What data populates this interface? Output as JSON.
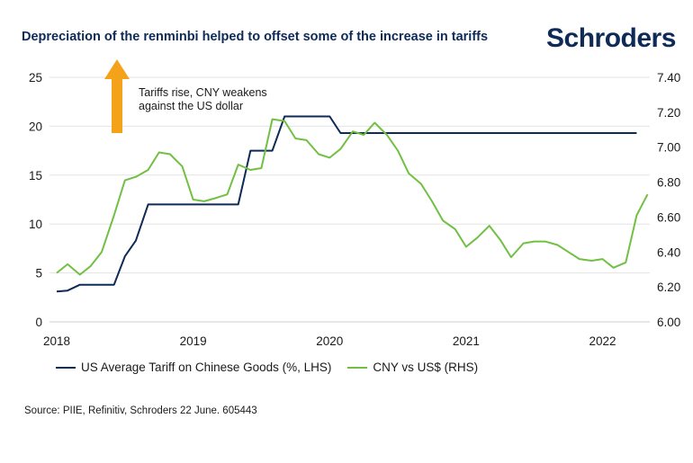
{
  "header": {
    "title": "Depreciation of the renminbi helped to offset some of the increase in tariffs",
    "brand": "Schroders"
  },
  "chart_data": {
    "type": "line",
    "annotation": "Tariffs rise, CNY weakens\nagainst the US dollar",
    "annotation_icon": "up-arrow-icon",
    "x_ticks": [
      "2018",
      "2019",
      "2020",
      "2021",
      "2022"
    ],
    "x_tick_years": [
      2018,
      2019,
      2020,
      2021,
      2022
    ],
    "xlim": [
      2018.0,
      2022.3
    ],
    "y_left": {
      "ticks": [
        "0",
        "5",
        "10",
        "15",
        "20",
        "25"
      ],
      "lim": [
        0,
        25
      ]
    },
    "y_right": {
      "ticks": [
        "6.00",
        "6.20",
        "6.40",
        "6.60",
        "6.80",
        "7.00",
        "7.20",
        "7.40"
      ],
      "lim": [
        6.0,
        7.4
      ]
    },
    "grid": "horizontal",
    "series": [
      {
        "name": "US Average Tariff on Chinese Goods (%, LHS)",
        "axis": "left",
        "color": "#0e2a57",
        "points": [
          [
            2018.0,
            3.1
          ],
          [
            2018.08,
            3.2
          ],
          [
            2018.17,
            3.8
          ],
          [
            2018.25,
            3.8
          ],
          [
            2018.33,
            3.8
          ],
          [
            2018.42,
            3.8
          ],
          [
            2018.5,
            6.7
          ],
          [
            2018.58,
            8.3
          ],
          [
            2018.67,
            12.0
          ],
          [
            2018.75,
            12.0
          ],
          [
            2018.83,
            12.0
          ],
          [
            2018.92,
            12.0
          ],
          [
            2019.0,
            12.0
          ],
          [
            2019.08,
            12.0
          ],
          [
            2019.17,
            12.0
          ],
          [
            2019.25,
            12.0
          ],
          [
            2019.33,
            12.0
          ],
          [
            2019.42,
            17.5
          ],
          [
            2019.5,
            17.5
          ],
          [
            2019.58,
            17.5
          ],
          [
            2019.67,
            21.0
          ],
          [
            2019.75,
            21.0
          ],
          [
            2019.83,
            21.0
          ],
          [
            2019.92,
            21.0
          ],
          [
            2020.0,
            21.0
          ],
          [
            2020.08,
            19.3
          ],
          [
            2020.25,
            19.3
          ],
          [
            2020.5,
            19.3
          ],
          [
            2020.75,
            19.3
          ],
          [
            2021.0,
            19.3
          ],
          [
            2021.25,
            19.3
          ],
          [
            2021.5,
            19.3
          ],
          [
            2021.75,
            19.3
          ],
          [
            2022.0,
            19.3
          ],
          [
            2022.25,
            19.3
          ]
        ]
      },
      {
        "name": "CNY vs US$ (RHS)",
        "axis": "right",
        "color": "#72c043",
        "points": [
          [
            2018.0,
            6.28
          ],
          [
            2018.08,
            6.33
          ],
          [
            2018.17,
            6.27
          ],
          [
            2018.25,
            6.32
          ],
          [
            2018.33,
            6.4
          ],
          [
            2018.42,
            6.61
          ],
          [
            2018.5,
            6.81
          ],
          [
            2018.58,
            6.83
          ],
          [
            2018.67,
            6.87
          ],
          [
            2018.75,
            6.97
          ],
          [
            2018.83,
            6.96
          ],
          [
            2018.92,
            6.89
          ],
          [
            2019.0,
            6.7
          ],
          [
            2019.08,
            6.69
          ],
          [
            2019.17,
            6.71
          ],
          [
            2019.25,
            6.73
          ],
          [
            2019.33,
            6.9
          ],
          [
            2019.42,
            6.87
          ],
          [
            2019.5,
            6.88
          ],
          [
            2019.58,
            7.16
          ],
          [
            2019.67,
            7.15
          ],
          [
            2019.75,
            7.05
          ],
          [
            2019.83,
            7.04
          ],
          [
            2019.92,
            6.96
          ],
          [
            2020.0,
            6.94
          ],
          [
            2020.08,
            6.99
          ],
          [
            2020.17,
            7.09
          ],
          [
            2020.25,
            7.07
          ],
          [
            2020.33,
            7.14
          ],
          [
            2020.42,
            7.07
          ],
          [
            2020.5,
            6.98
          ],
          [
            2020.58,
            6.85
          ],
          [
            2020.67,
            6.79
          ],
          [
            2020.75,
            6.69
          ],
          [
            2020.83,
            6.58
          ],
          [
            2020.92,
            6.53
          ],
          [
            2021.0,
            6.43
          ],
          [
            2021.08,
            6.48
          ],
          [
            2021.17,
            6.55
          ],
          [
            2021.25,
            6.47
          ],
          [
            2021.33,
            6.37
          ],
          [
            2021.42,
            6.45
          ],
          [
            2021.5,
            6.46
          ],
          [
            2021.58,
            6.46
          ],
          [
            2021.67,
            6.44
          ],
          [
            2021.75,
            6.4
          ],
          [
            2021.83,
            6.36
          ],
          [
            2021.92,
            6.35
          ],
          [
            2022.0,
            6.36
          ],
          [
            2022.08,
            6.31
          ],
          [
            2022.17,
            6.34
          ],
          [
            2022.25,
            6.61
          ],
          [
            2022.33,
            6.73
          ]
        ]
      }
    ]
  },
  "footer": {
    "source": "Source: PIIE, Refinitiv, Schroders 22 June. 605443"
  }
}
